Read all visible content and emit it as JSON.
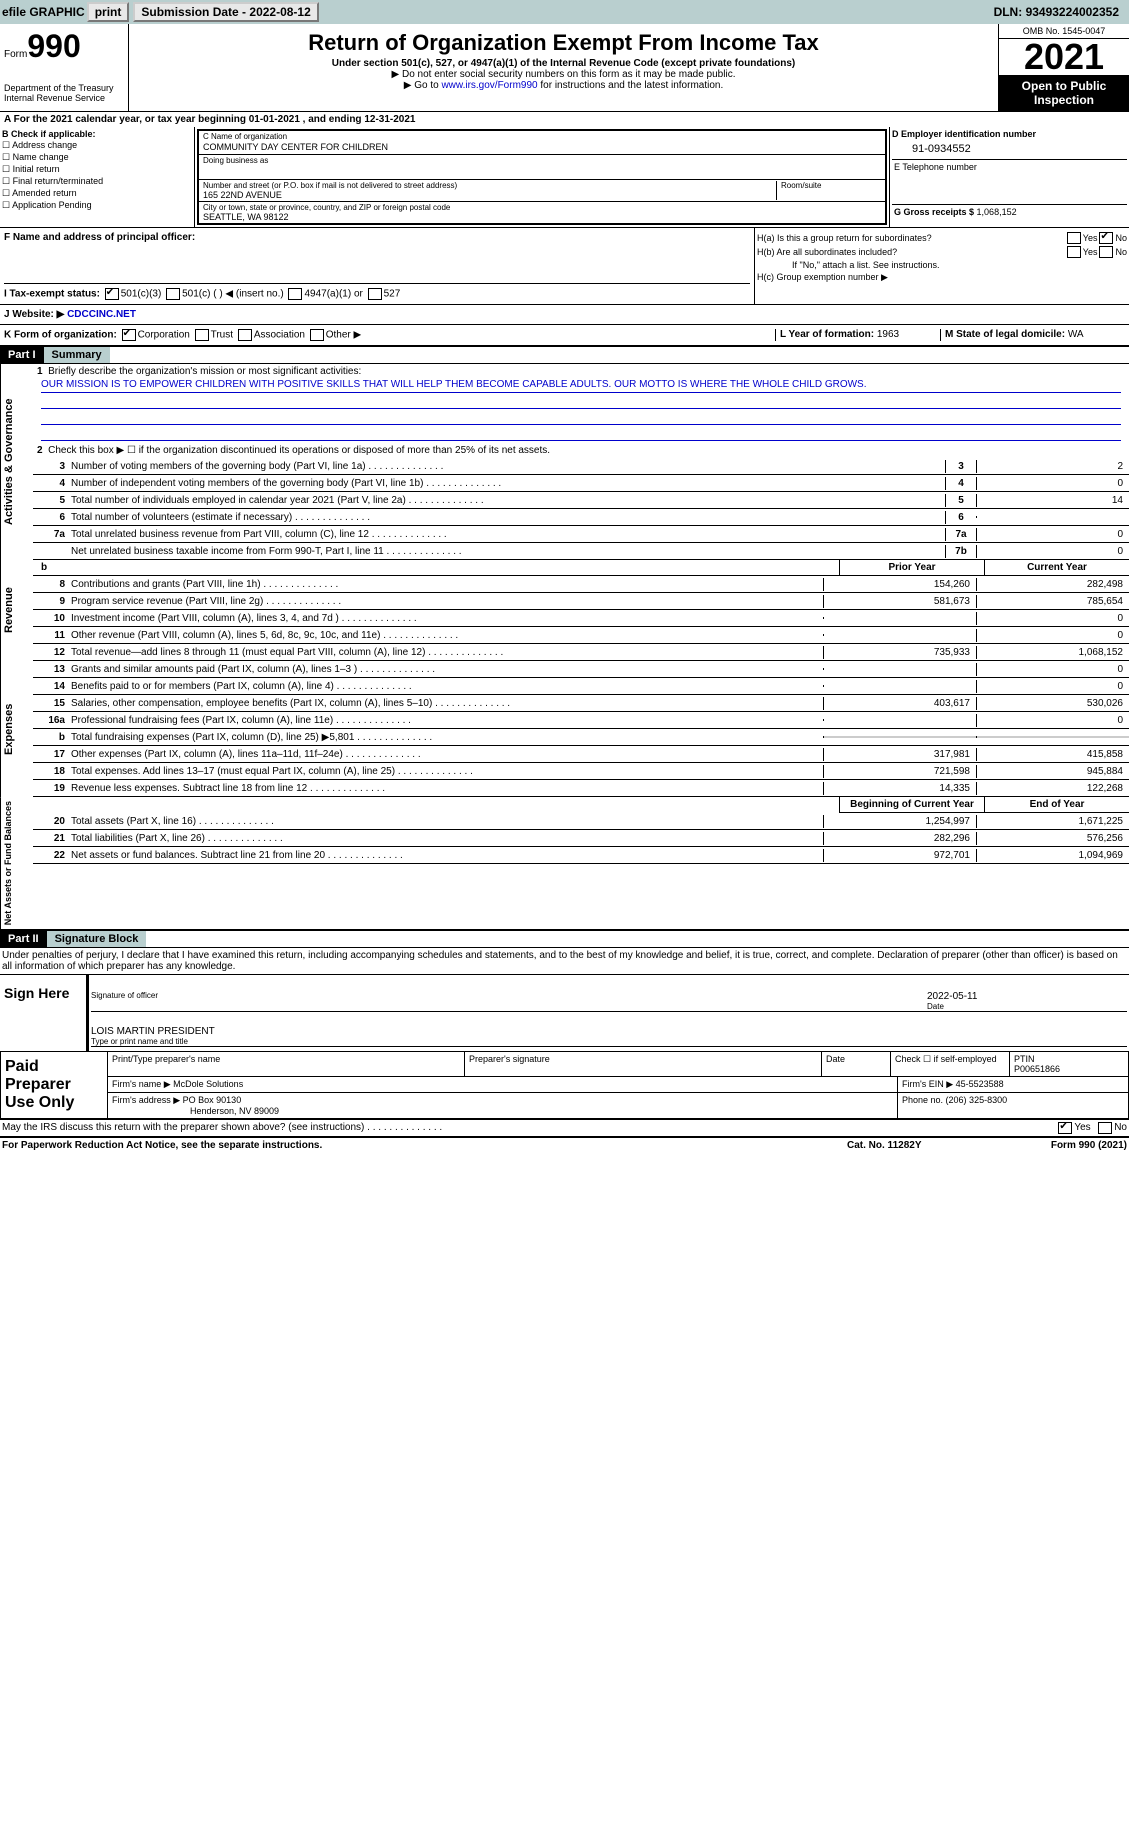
{
  "topbar": {
    "efile": "efile GRAPHIC",
    "print": "print",
    "subdate_label": "Submission Date - ",
    "subdate": "2022-08-12",
    "dln_label": "DLN: ",
    "dln": "93493224002352"
  },
  "header": {
    "form_small": "Form",
    "form_big": "990",
    "dept": "Department of the Treasury",
    "irs": "Internal Revenue Service",
    "title": "Return of Organization Exempt From Income Tax",
    "sub1": "Under section 501(c), 527, or 4947(a)(1) of the Internal Revenue Code (except private foundations)",
    "sub2": "▶ Do not enter social security numbers on this form as it may be made public.",
    "sub3_pre": "▶ Go to ",
    "sub3_link": "www.irs.gov/Form990",
    "sub3_post": " for instructions and the latest information.",
    "omb": "OMB No. 1545-0047",
    "year": "2021",
    "open": "Open to Public Inspection"
  },
  "sectionA": {
    "text": "A For the 2021 calendar year, or tax year beginning 01-01-2021   , and ending 12-31-2021"
  },
  "colB": {
    "label": "B Check if applicable:",
    "items": [
      "Address change",
      "Name change",
      "Initial return",
      "Final return/terminated",
      "Amended return",
      "Application Pending"
    ]
  },
  "colC": {
    "name_lbl": "C Name of organization",
    "name": "COMMUNITY DAY CENTER FOR CHILDREN",
    "dba_lbl": "Doing business as",
    "addr_lbl": "Number and street (or P.O. box if mail is not delivered to street address)",
    "room_lbl": "Room/suite",
    "addr": "165 22ND AVENUE",
    "city_lbl": "City or town, state or province, country, and ZIP or foreign postal code",
    "city": "SEATTLE, WA  98122"
  },
  "colD": {
    "label": "D Employer identification number",
    "ein": "91-0934552",
    "e_label": "E Telephone number",
    "g_label": "G Gross receipts $ ",
    "g_val": "1,068,152"
  },
  "rowF": {
    "label": "F  Name and address of principal officer:"
  },
  "rowH": {
    "ha": "H(a)  Is this a group return for subordinates?",
    "hb": "H(b)  Are all subordinates included?",
    "yes": "Yes",
    "no": "No",
    "note": "If \"No,\" attach a list. See instructions.",
    "hc": "H(c)  Group exemption number ▶"
  },
  "rowI": {
    "label": "I   Tax-exempt status:",
    "o1": "501(c)(3)",
    "o2": "501(c) (  ) ◀ (insert no.)",
    "o3": "4947(a)(1) or",
    "o4": "527"
  },
  "rowJ": {
    "label": "J   Website: ▶ ",
    "val": "CDCCINC.NET"
  },
  "rowK": {
    "label": "K Form of organization:",
    "o1": "Corporation",
    "o2": "Trust",
    "o3": "Association",
    "o4": "Other ▶",
    "l_label": "L Year of formation: ",
    "l_val": "1963",
    "m_label": "M State of legal domicile: ",
    "m_val": "WA"
  },
  "part1": {
    "hdr": "Part I",
    "title": "Summary",
    "tab_gov": "Activities & Governance",
    "tab_rev": "Revenue",
    "tab_exp": "Expenses",
    "tab_net": "Net Assets or Fund Balances",
    "l1": "Briefly describe the organization's mission or most significant activities:",
    "mission": "OUR MISSION IS TO EMPOWER CHILDREN WITH POSITIVE SKILLS THAT WILL HELP THEM BECOME CAPABLE ADULTS. OUR MOTTO IS WHERE THE WHOLE CHILD GROWS.",
    "l2": "Check this box ▶ ☐  if the organization discontinued its operations or disposed of more than 25% of its net assets.",
    "lines_gov": [
      {
        "n": "3",
        "t": "Number of voting members of the governing body (Part VI, line 1a)",
        "b": "3",
        "v": "2"
      },
      {
        "n": "4",
        "t": "Number of independent voting members of the governing body (Part VI, line 1b)",
        "b": "4",
        "v": "0"
      },
      {
        "n": "5",
        "t": "Total number of individuals employed in calendar year 2021 (Part V, line 2a)",
        "b": "5",
        "v": "14"
      },
      {
        "n": "6",
        "t": "Total number of volunteers (estimate if necessary)",
        "b": "6",
        "v": ""
      },
      {
        "n": "7a",
        "t": "Total unrelated business revenue from Part VIII, column (C), line 12",
        "b": "7a",
        "v": "0"
      },
      {
        "n": "",
        "t": "Net unrelated business taxable income from Form 990-T, Part I, line 11",
        "b": "7b",
        "v": "0"
      }
    ],
    "prior_hdr": "Prior Year",
    "curr_hdr": "Current Year",
    "lines_rev": [
      {
        "n": "8",
        "t": "Contributions and grants (Part VIII, line 1h)",
        "p": "154,260",
        "c": "282,498"
      },
      {
        "n": "9",
        "t": "Program service revenue (Part VIII, line 2g)",
        "p": "581,673",
        "c": "785,654"
      },
      {
        "n": "10",
        "t": "Investment income (Part VIII, column (A), lines 3, 4, and 7d )",
        "p": "",
        "c": "0"
      },
      {
        "n": "11",
        "t": "Other revenue (Part VIII, column (A), lines 5, 6d, 8c, 9c, 10c, and 11e)",
        "p": "",
        "c": "0"
      },
      {
        "n": "12",
        "t": "Total revenue—add lines 8 through 11 (must equal Part VIII, column (A), line 12)",
        "p": "735,933",
        "c": "1,068,152"
      }
    ],
    "lines_exp": [
      {
        "n": "13",
        "t": "Grants and similar amounts paid (Part IX, column (A), lines 1–3 )",
        "p": "",
        "c": "0"
      },
      {
        "n": "14",
        "t": "Benefits paid to or for members (Part IX, column (A), line 4)",
        "p": "",
        "c": "0"
      },
      {
        "n": "15",
        "t": "Salaries, other compensation, employee benefits (Part IX, column (A), lines 5–10)",
        "p": "403,617",
        "c": "530,026"
      },
      {
        "n": "16a",
        "t": "Professional fundraising fees (Part IX, column (A), line 11e)",
        "p": "",
        "c": "0"
      },
      {
        "n": "b",
        "t": "Total fundraising expenses (Part IX, column (D), line 25) ▶5,801",
        "p": "SHADE",
        "c": "SHADE"
      },
      {
        "n": "17",
        "t": "Other expenses (Part IX, column (A), lines 11a–11d, 11f–24e)",
        "p": "317,981",
        "c": "415,858"
      },
      {
        "n": "18",
        "t": "Total expenses. Add lines 13–17 (must equal Part IX, column (A), line 25)",
        "p": "721,598",
        "c": "945,884"
      },
      {
        "n": "19",
        "t": "Revenue less expenses. Subtract line 18 from line 12",
        "p": "14,335",
        "c": "122,268"
      }
    ],
    "beg_hdr": "Beginning of Current Year",
    "end_hdr": "End of Year",
    "lines_net": [
      {
        "n": "20",
        "t": "Total assets (Part X, line 16)",
        "p": "1,254,997",
        "c": "1,671,225"
      },
      {
        "n": "21",
        "t": "Total liabilities (Part X, line 26)",
        "p": "282,296",
        "c": "576,256"
      },
      {
        "n": "22",
        "t": "Net assets or fund balances. Subtract line 21 from line 20",
        "p": "972,701",
        "c": "1,094,969"
      }
    ]
  },
  "part2": {
    "hdr": "Part II",
    "title": "Signature Block",
    "decl": "Under penalties of perjury, I declare that I have examined this return, including accompanying schedules and statements, and to the best of my knowledge and belief, it is true, correct, and complete. Declaration of preparer (other than officer) is based on all information of which preparer has any knowledge.",
    "sign_here": "Sign Here",
    "sig_off": "Signature of officer",
    "date": "Date",
    "sig_date": "2022-05-11",
    "name_title": "LOIS MARTIN  PRESIDENT",
    "type_lbl": "Type or print name and title",
    "paid": "Paid Preparer Use Only",
    "prep_name_lbl": "Print/Type preparer's name",
    "prep_sig_lbl": "Preparer's signature",
    "date_lbl": "Date",
    "check_lbl": "Check ☐ if self-employed",
    "ptin_lbl": "PTIN",
    "ptin": "P00651866",
    "firm_name_lbl": "Firm's name    ▶ ",
    "firm_name": "McDole Solutions",
    "firm_ein_lbl": "Firm's EIN ▶ ",
    "firm_ein": "45-5523588",
    "firm_addr_lbl": "Firm's address ▶ ",
    "firm_addr": "PO Box 90130",
    "firm_city": "Henderson, NV  89009",
    "phone_lbl": "Phone no. ",
    "phone": "(206) 325-8300",
    "may_irs": "May the IRS discuss this return with the preparer shown above? (see instructions)",
    "paperwork": "For Paperwork Reduction Act Notice, see the separate instructions.",
    "cat": "Cat. No. 11282Y",
    "form_foot": "Form 990 (2021)"
  }
}
